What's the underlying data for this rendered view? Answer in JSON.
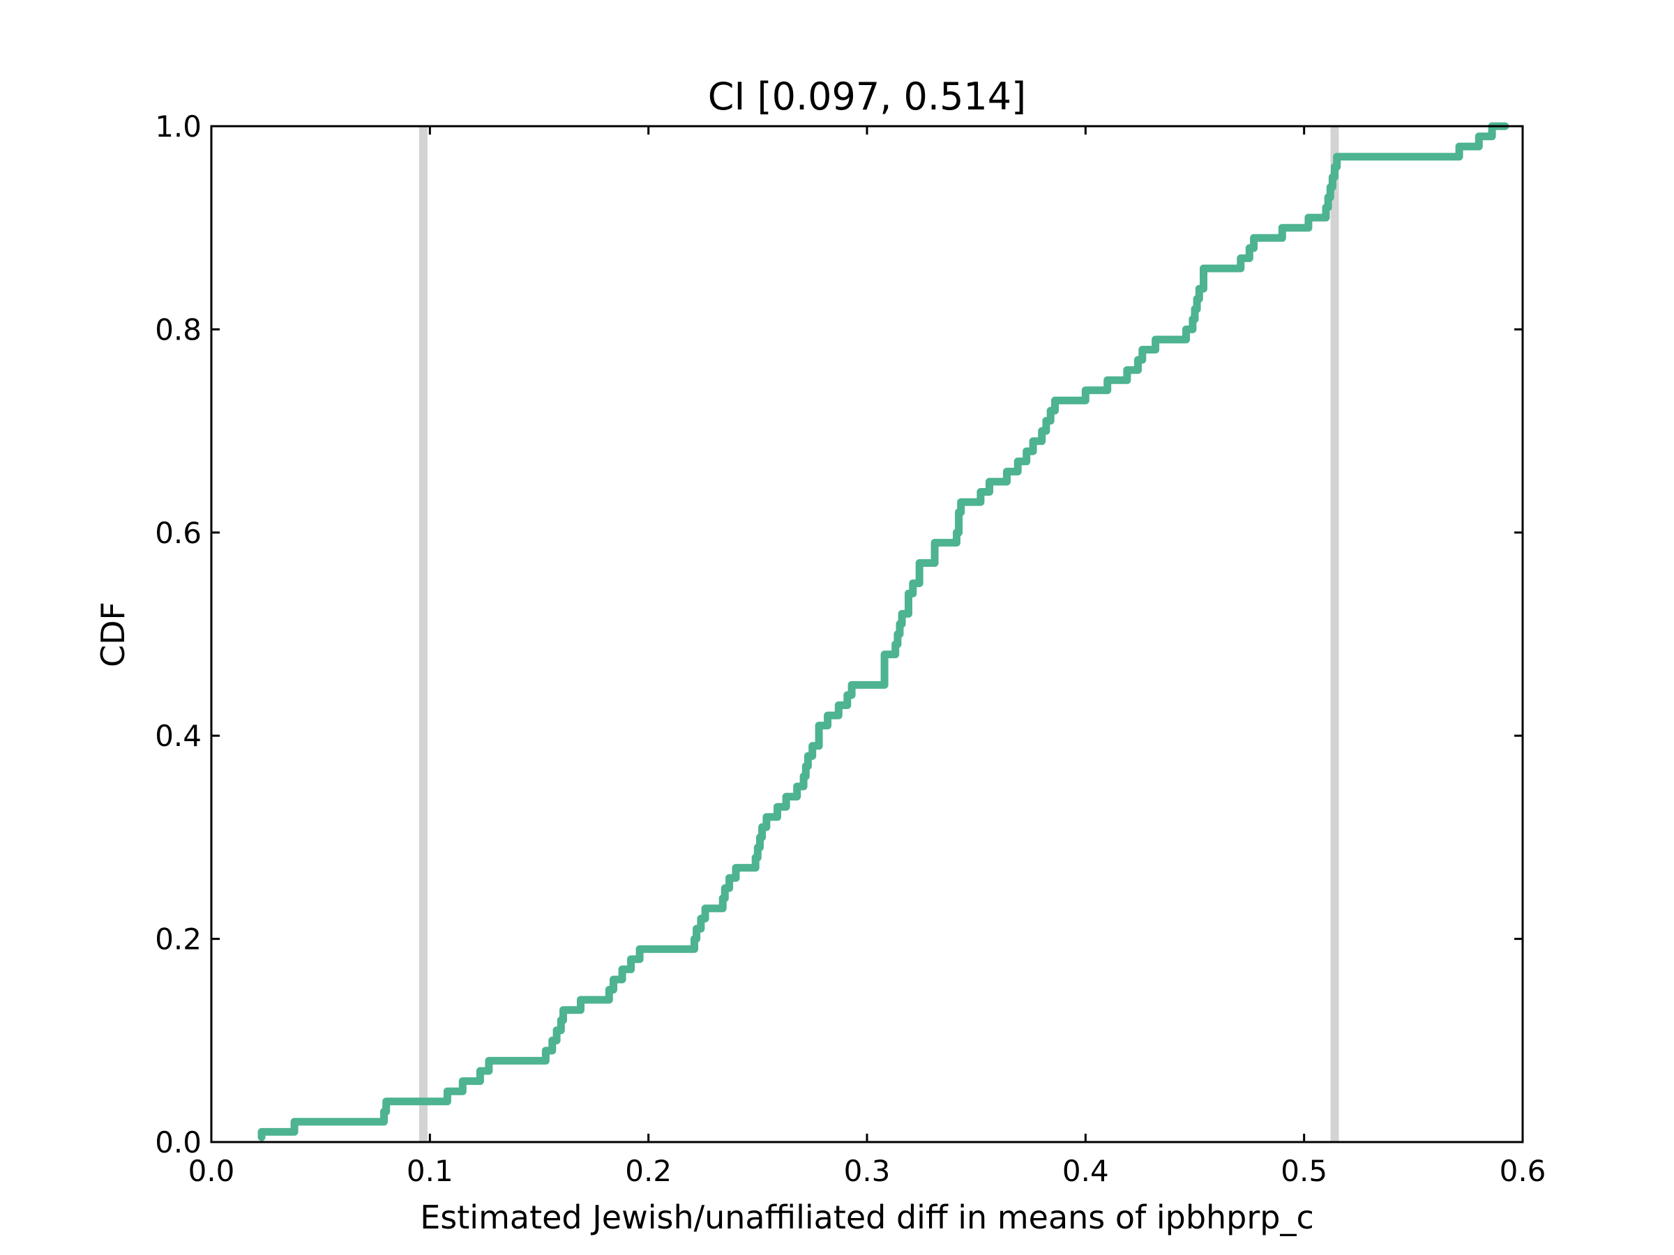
{
  "chart_data": {
    "type": "line",
    "title": "CI [0.097, 0.514]",
    "xlabel": "Estimated Jewish/unaffiliated diff in means of ipbhprp_c",
    "ylabel": "CDF",
    "xlim": [
      0.0,
      0.6
    ],
    "ylim": [
      0.0,
      1.0
    ],
    "xticks": [
      "0.0",
      "0.1",
      "0.2",
      "0.3",
      "0.4",
      "0.5",
      "0.6"
    ],
    "yticks": [
      "0.0",
      "0.2",
      "0.4",
      "0.6",
      "0.8",
      "1.0"
    ],
    "grid": false,
    "colors": {
      "series": "#4db391",
      "ci_lines": "#d3d3d3"
    },
    "ci_lines": [
      0.097,
      0.514
    ],
    "series": [
      {
        "style": "step",
        "x": [
          0.023,
          0.038,
          0.079,
          0.08,
          0.096,
          0.108,
          0.115,
          0.123,
          0.127,
          0.153,
          0.156,
          0.158,
          0.16,
          0.161,
          0.169,
          0.182,
          0.184,
          0.188,
          0.192,
          0.196,
          0.221,
          0.222,
          0.224,
          0.226,
          0.234,
          0.235,
          0.237,
          0.24,
          0.249,
          0.25,
          0.251,
          0.252,
          0.254,
          0.259,
          0.263,
          0.268,
          0.271,
          0.272,
          0.273,
          0.275,
          0.278,
          0.282,
          0.287,
          0.291,
          0.293,
          0.308,
          0.313,
          0.314,
          0.315,
          0.316,
          0.319,
          0.321,
          0.324,
          0.331,
          0.341,
          0.342,
          0.343,
          0.352,
          0.356,
          0.364,
          0.369,
          0.373,
          0.376,
          0.38,
          0.382,
          0.384,
          0.386,
          0.4,
          0.41,
          0.419,
          0.424,
          0.426,
          0.432,
          0.446,
          0.449,
          0.45,
          0.451,
          0.452,
          0.454,
          0.454,
          0.471,
          0.475,
          0.477,
          0.483,
          0.49,
          0.502,
          0.51,
          0.511,
          0.512,
          0.513,
          0.514,
          0.515,
          0.518,
          0.571,
          0.58,
          0.586,
          0.592
        ],
        "y": [
          0.01,
          0.02,
          0.03,
          0.04,
          0.04,
          0.05,
          0.06,
          0.07,
          0.08,
          0.09,
          0.1,
          0.11,
          0.12,
          0.13,
          0.14,
          0.15,
          0.16,
          0.17,
          0.18,
          0.19,
          0.2,
          0.21,
          0.22,
          0.23,
          0.24,
          0.25,
          0.26,
          0.27,
          0.28,
          0.29,
          0.3,
          0.31,
          0.32,
          0.33,
          0.34,
          0.35,
          0.36,
          0.37,
          0.38,
          0.39,
          0.41,
          0.42,
          0.43,
          0.44,
          0.45,
          0.48,
          0.49,
          0.5,
          0.51,
          0.52,
          0.54,
          0.55,
          0.57,
          0.59,
          0.6,
          0.62,
          0.63,
          0.64,
          0.65,
          0.66,
          0.67,
          0.68,
          0.69,
          0.7,
          0.71,
          0.72,
          0.73,
          0.74,
          0.75,
          0.76,
          0.77,
          0.78,
          0.79,
          0.8,
          0.81,
          0.82,
          0.83,
          0.84,
          0.85,
          0.86,
          0.87,
          0.88,
          0.89,
          0.89,
          0.9,
          0.91,
          0.92,
          0.93,
          0.94,
          0.95,
          0.96,
          0.97,
          0.97,
          0.98,
          0.99,
          1.0,
          1.0
        ]
      }
    ]
  }
}
